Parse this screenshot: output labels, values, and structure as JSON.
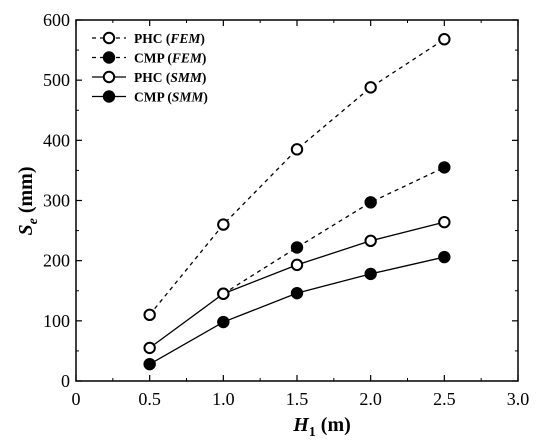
{
  "chart_data": {
    "type": "line",
    "x": [
      0.5,
      1.0,
      1.5,
      2.0,
      2.5
    ],
    "xlim": [
      0,
      3.0
    ],
    "ylim": [
      0,
      600
    ],
    "x_ticks": [
      "0",
      "0.5",
      "1.0",
      "1.5",
      "2.0",
      "2.5",
      "3.0"
    ],
    "y_ticks": [
      "0",
      "100",
      "200",
      "300",
      "400",
      "500",
      "600"
    ],
    "xlabel": {
      "main": "H",
      "sub": "1",
      "unit": " (m)"
    },
    "ylabel": {
      "main": "S",
      "sub": "e",
      "unit": " (mm)"
    },
    "grid": false,
    "legend_position": "top-left",
    "series": [
      {
        "name": "PHC (FEM)",
        "name_main": "PHC",
        "name_method": "FEM",
        "marker": "open",
        "line": "dashed",
        "values": [
          110,
          260,
          385,
          488,
          568
        ]
      },
      {
        "name": "CMP (FEM)",
        "name_main": "CMP",
        "name_method": "FEM",
        "marker": "filled",
        "line": "dashed",
        "values": [
          null,
          145,
          222,
          297,
          355
        ]
      },
      {
        "name": "PHC (SMM)",
        "name_main": "PHC",
        "name_method": "SMM",
        "marker": "open",
        "line": "solid",
        "values": [
          55,
          145,
          193,
          233,
          264
        ]
      },
      {
        "name": "CMP (SMM)",
        "name_main": "CMP",
        "name_method": "SMM",
        "marker": "filled",
        "line": "solid",
        "values": [
          28,
          98,
          146,
          178,
          206
        ]
      }
    ],
    "colors": {
      "line": "#000000",
      "background": "#ffffff"
    }
  }
}
